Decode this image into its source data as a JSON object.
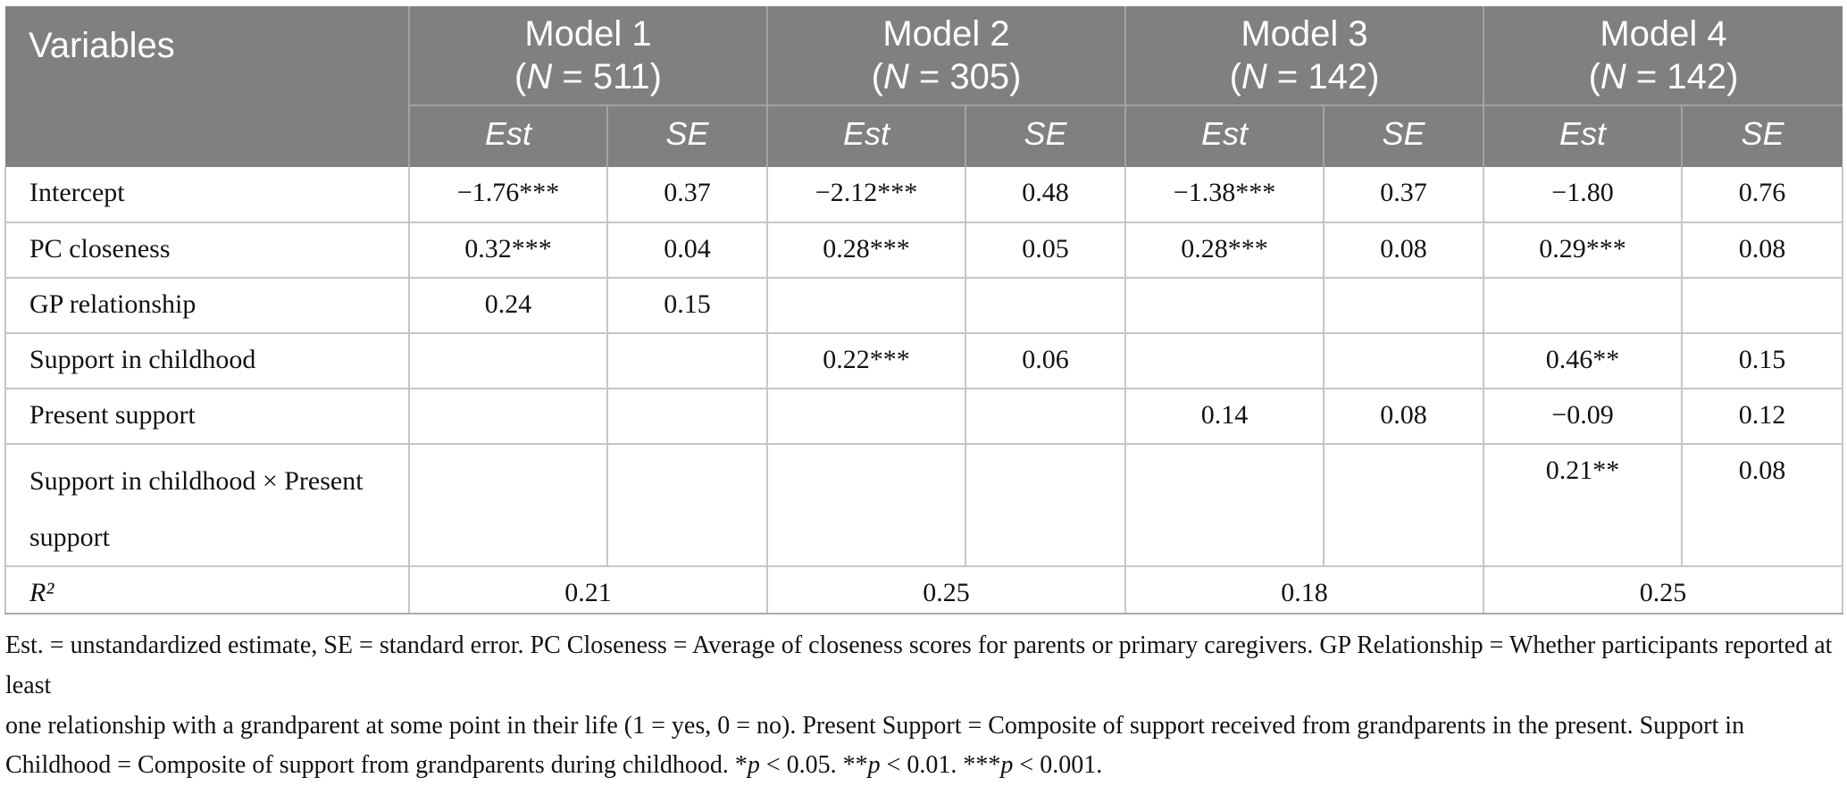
{
  "header": {
    "variables_label": "Variables",
    "models": [
      {
        "title": "Model 1",
        "n_open": "(",
        "n_symbol": "N",
        "n_rest": " = 511)"
      },
      {
        "title": "Model 2",
        "n_open": "(",
        "n_symbol": "N",
        "n_rest": " = 305)"
      },
      {
        "title": "Model 3",
        "n_open": "(",
        "n_symbol": "N",
        "n_rest": " = 142)"
      },
      {
        "title": "Model 4",
        "n_open": "(",
        "n_symbol": "N",
        "n_rest": " = 142)"
      }
    ],
    "stat_columns": [
      "Est",
      "SE"
    ]
  },
  "body": {
    "rows": [
      {
        "label": "Intercept",
        "cells": [
          "−1.76***",
          "0.37",
          "−2.12***",
          "0.48",
          "−1.38***",
          "0.37",
          "−1.80",
          "0.76"
        ]
      },
      {
        "label": "PC closeness",
        "cells": [
          "0.32***",
          "0.04",
          "0.28***",
          "0.05",
          "0.28***",
          "0.08",
          "0.29***",
          "0.08"
        ]
      },
      {
        "label": "GP relationship",
        "cells": [
          "0.24",
          "0.15",
          "",
          "",
          "",
          "",
          "",
          ""
        ]
      },
      {
        "label": "Support in childhood",
        "cells": [
          "",
          "",
          "0.22***",
          "0.06",
          "",
          "",
          "0.46**",
          "0.15"
        ]
      },
      {
        "label": "Present support",
        "cells": [
          "",
          "",
          "",
          "",
          "0.14",
          "0.08",
          "−0.09",
          "0.12"
        ]
      },
      {
        "label": "Support in childhood × Present support",
        "tall": true,
        "cells": [
          "",
          "",
          "",
          "",
          "",
          "",
          "0.21**",
          "0.08"
        ]
      }
    ],
    "r2_row": {
      "label": "R²",
      "values": [
        "0.21",
        "0.25",
        "0.18",
        "0.25"
      ]
    }
  },
  "footnote": {
    "lines": [
      [
        {
          "t": "Est. = unstandardized estimate, SE = standard error. PC Closeness = Average of closeness scores for parents or primary caregivers. GP Relationship = Whether participants reported at least"
        }
      ],
      [
        {
          "t": "one relationship with a grandparent at some point in their life (1 = yes, 0 = no). Present Support = Composite of support received from grandparents in the present. Support in"
        }
      ],
      [
        {
          "t": "Childhood = Composite of support from grandparents during childhood. *"
        },
        {
          "t": "p",
          "i": true
        },
        {
          "t": " < 0.05. **"
        },
        {
          "t": "p",
          "i": true
        },
        {
          "t": " < 0.01. ***"
        },
        {
          "t": "p",
          "i": true
        },
        {
          "t": " < 0.001."
        }
      ]
    ]
  },
  "colors": {
    "header_bg": "#7f8080",
    "header_text": "#ffffff",
    "header_border": "#a3a3a3",
    "body_border": "#c6c6c6",
    "body_text": "#121212"
  }
}
